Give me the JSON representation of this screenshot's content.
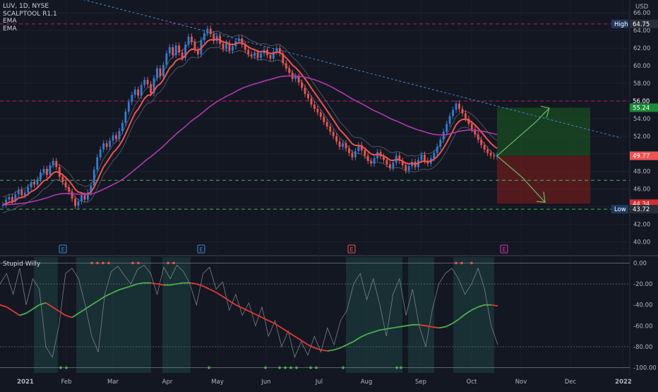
{
  "header": {
    "symbol": "LUV, 1D, NYSE",
    "indicator1": "SCALPTOOL R1.1",
    "ema1": "EMA",
    "ema2": "EMA",
    "currency": "USD"
  },
  "indicator": {
    "title": "Stupid Willy"
  },
  "colors": {
    "background": "#131722",
    "up": "#2e7fd6",
    "down": "#ef5350",
    "ema_fast": "#ef5350",
    "ema_slow": "#b039b0",
    "osc_up": "#4caf50",
    "osc_down": "#e53935",
    "green_zone": "#1b5e20",
    "red_zone": "#7f1d1d",
    "trend": "#3d8bd9"
  },
  "chart_data": [
    {
      "type": "candlestick",
      "title": "LUV, 1D, NYSE",
      "y_axis": {
        "label": "USD",
        "range": [
          39.0,
          66.5
        ],
        "ticks": [
          "66.00",
          "64.00",
          "62.00",
          "60.00",
          "58.00",
          "56.00",
          "54.00",
          "52.00",
          "50.00",
          "48.00",
          "46.00",
          "44.00",
          "42.00",
          "40.00"
        ]
      },
      "x_axis": {
        "ticks": [
          "2021",
          "Feb",
          "Mar",
          "Apr",
          "May",
          "Jun",
          "Jul",
          "Aug",
          "Sep",
          "Oct",
          "Nov",
          "Dec",
          "2022"
        ]
      },
      "price_labels": [
        {
          "text": "64.75",
          "value": 64.75,
          "tag": "High",
          "color": "#2a2e39"
        },
        {
          "text": "56.00",
          "value": 56.0,
          "tag": "",
          "color": "#131722"
        },
        {
          "text": "55.24",
          "value": 55.24,
          "tag": "",
          "color": "#1b8a3a"
        },
        {
          "text": "49.79",
          "value": 49.79,
          "tag": "",
          "color": "#5d606b"
        },
        {
          "text": "49.77",
          "value": 49.77,
          "tag": "",
          "color": "#ef5350"
        },
        {
          "text": "44.34",
          "value": 44.34,
          "tag": "",
          "color": "#d32f2f"
        },
        {
          "text": "43.72",
          "value": 43.72,
          "tag": "Low",
          "color": "#2a2e39"
        }
      ],
      "horizontal_levels": [
        {
          "value": 64.75,
          "style": "dashed",
          "color": "#c2185b"
        },
        {
          "value": 56.0,
          "style": "dashed",
          "color": "#c2185b"
        },
        {
          "value": 47.0,
          "style": "dashed",
          "color": "#4caf50"
        },
        {
          "value": 43.72,
          "style": "dashed",
          "color": "#4caf50"
        }
      ],
      "trendline": {
        "from": {
          "x": "2021-01-01",
          "y": 67.5
        },
        "to": {
          "x": "2022-01-01",
          "y": 51.8
        }
      },
      "risk_reward": {
        "entry": 49.77,
        "target": 55.24,
        "stop": 44.34,
        "x_start": "2021-10-20",
        "x_end": "2021-12-20"
      },
      "earnings": [
        "E",
        "E",
        "E",
        "E"
      ],
      "closes": [
        44.2,
        44.8,
        45.1,
        44.6,
        45.4,
        45.9,
        45.3,
        45.6,
        46.2,
        46.8,
        46.5,
        47.1,
        47.9,
        48.3,
        47.6,
        48.7,
        49.2,
        48.5,
        47.4,
        46.8,
        46.2,
        45.7,
        44.9,
        44.1,
        44.6,
        45.3,
        44.8,
        45.6,
        46.4,
        48.2,
        49.6,
        50.5,
        51.2,
        50.8,
        51.5,
        52.1,
        51.7,
        52.6,
        53.5,
        54.8,
        55.9,
        56.7,
        57.3,
        56.6,
        57.8,
        58.4,
        57.9,
        56.9,
        58.6,
        59.7,
        58.8,
        60.1,
        61.4,
        62.1,
        61.2,
        62.3,
        61.5,
        60.9,
        62.4,
        63.3,
        62.7,
        61.8,
        61.3,
        62.9,
        63.7,
        64.2,
        63.6,
        62.8,
        63.4,
        62.5,
        61.9,
        62.6,
        61.7,
        62.2,
        62.8,
        63.1,
        62.4,
        61.8,
        61.3,
        61.1,
        61.5,
        60.9,
        61.4,
        61.8,
        61.2,
        60.8,
        61.6,
        62.0,
        61.4,
        60.3,
        59.7,
        59.2,
        58.5,
        58.8,
        58.1,
        57.5,
        56.8,
        56.3,
        55.6,
        55.1,
        54.7,
        54.2,
        53.6,
        53.1,
        52.5,
        52.0,
        51.4,
        50.8,
        51.2,
        50.6,
        50.1,
        49.6,
        50.3,
        51.0,
        50.4,
        49.8,
        49.2,
        48.9,
        49.5,
        50.2,
        49.7,
        49.3,
        48.8,
        48.4,
        49.0,
        49.8,
        49.2,
        48.7,
        48.1,
        48.6,
        49.1,
        48.5,
        49.3,
        49.9,
        49.2,
        48.9,
        49.5,
        50.1,
        50.8,
        51.6,
        52.5,
        53.4,
        54.3,
        55.0,
        55.7,
        55.1,
        54.6,
        54.0,
        53.4,
        52.8,
        52.2,
        51.6,
        51.0,
        50.5,
        50.1,
        49.8,
        49.7,
        49.79
      ],
      "ema_fast_label": "EMA",
      "ema_slow_label": "EMA"
    },
    {
      "type": "line",
      "title": "Stupid Willy",
      "y_axis": {
        "range": [
          -105,
          7
        ],
        "ticks": [
          "0.00",
          "-20.00",
          "-40.00",
          "-60.00",
          "-80.00",
          "-100.00"
        ]
      },
      "signal": [
        -40,
        -42,
        -46,
        -50,
        -48,
        -44,
        -40,
        -38,
        -42,
        -46,
        -50,
        -52,
        -48,
        -44,
        -40,
        -36,
        -32,
        -29,
        -26,
        -24,
        -22,
        -20,
        -19,
        -19,
        -20,
        -21,
        -21,
        -20,
        -19,
        -19,
        -20,
        -22,
        -25,
        -28,
        -32,
        -36,
        -40,
        -43,
        -46,
        -49,
        -52,
        -55,
        -58,
        -62,
        -66,
        -70,
        -74,
        -78,
        -81,
        -83,
        -84,
        -83,
        -81,
        -78,
        -75,
        -71,
        -68,
        -66,
        -64,
        -63,
        -62,
        -61,
        -60,
        -59,
        -59,
        -60,
        -61,
        -62,
        -61,
        -58,
        -54,
        -49,
        -45,
        -42,
        -40,
        -40,
        -41
      ],
      "osc": [
        -20,
        -10,
        -30,
        -5,
        -40,
        -15,
        -25,
        -80,
        -90,
        -60,
        -10,
        -5,
        -15,
        -40,
        -70,
        -85,
        -30,
        -8,
        -3,
        -12,
        -20,
        -6,
        -2,
        -10,
        -30,
        -4,
        -15,
        -2,
        -8,
        -20,
        -40,
        -10,
        -4,
        -25,
        -18,
        -45,
        -30,
        -50,
        -38,
        -60,
        -42,
        -70,
        -55,
        -80,
        -65,
        -90,
        -75,
        -88,
        -70,
        -85,
        -62,
        -78,
        -55,
        -45,
        -20,
        -10,
        -35,
        -15,
        -40,
        -70,
        -30,
        -15,
        -50,
        -25,
        -60,
        -80,
        -45,
        -20,
        -10,
        -5,
        -15,
        -30,
        -20,
        -5,
        -25,
        -60,
        -78
      ]
    }
  ]
}
